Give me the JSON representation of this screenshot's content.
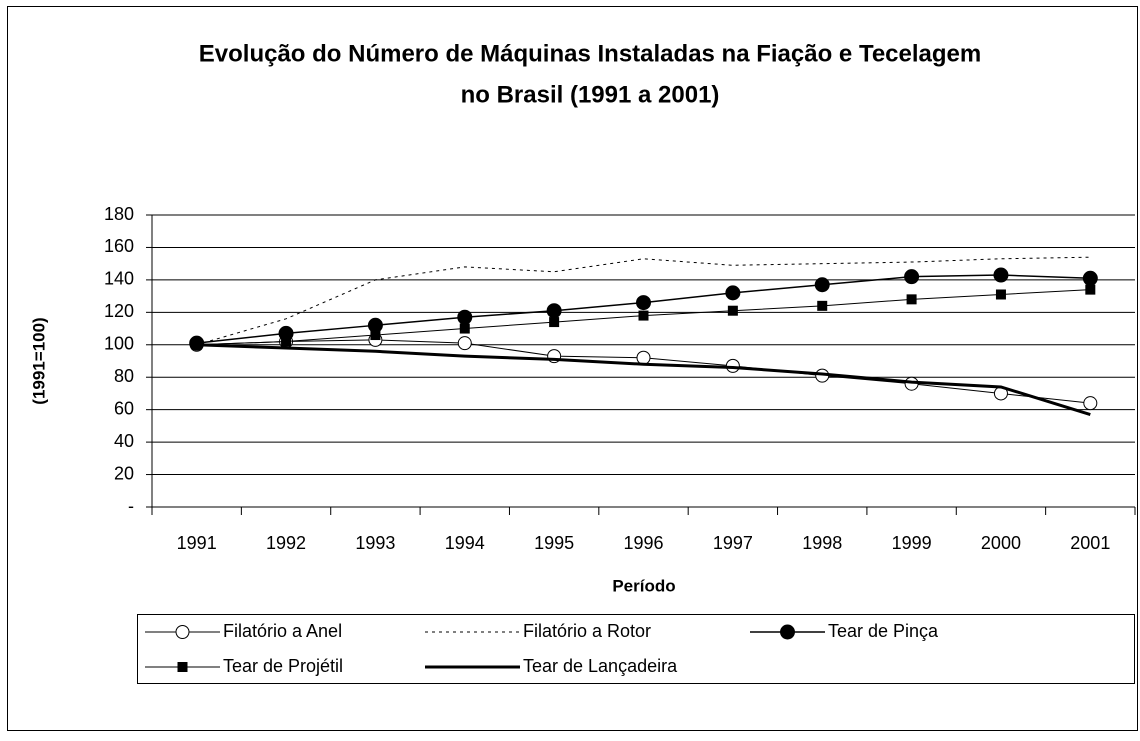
{
  "chart_data": {
    "type": "line",
    "title": [
      "Evolução do Número de Máquinas Instaladas na Fiação e Tecelagem",
      "no Brasil  (1991 a 2001)"
    ],
    "xlabel": "Período",
    "ylabel": "(1991=100)",
    "categories": [
      "1991",
      "1992",
      "1993",
      "1994",
      "1995",
      "1996",
      "1997",
      "1998",
      "1999",
      "2000",
      "2001"
    ],
    "series": [
      {
        "name": "Filatório a Anel",
        "color": "#000000",
        "linestyle": "solid",
        "linewidth": 1,
        "marker": "circle-open",
        "values": [
          100,
          102,
          103,
          101,
          93,
          92,
          87,
          81,
          76,
          70,
          64
        ]
      },
      {
        "name": "Filatório a Rotor",
        "color": "#000000",
        "linestyle": "dotted",
        "linewidth": 1,
        "marker": "none",
        "values": [
          100,
          116,
          140,
          148,
          145,
          153,
          149,
          150,
          151,
          153,
          154
        ]
      },
      {
        "name": "Tear de Pinça",
        "color": "#000000",
        "linestyle": "solid",
        "linewidth": 1.5,
        "marker": "circle-filled",
        "values": [
          101,
          107,
          112,
          117,
          121,
          126,
          132,
          137,
          142,
          143,
          141
        ]
      },
      {
        "name": "Tear de Projétil",
        "color": "#000000",
        "linestyle": "solid",
        "linewidth": 1,
        "marker": "square",
        "values": [
          100,
          102,
          106,
          110,
          114,
          118,
          121,
          124,
          128,
          131,
          134
        ]
      },
      {
        "name": "Tear de Lançadeira",
        "color": "#000000",
        "linestyle": "solid",
        "linewidth": 3,
        "marker": "none",
        "values": [
          100,
          98,
          96,
          93,
          91,
          88,
          86,
          82,
          77,
          74,
          57
        ]
      }
    ],
    "ylim": [
      0,
      180
    ],
    "yticks": [
      {
        "value": 0,
        "label": "-"
      },
      20,
      40,
      60,
      80,
      100,
      120,
      140,
      160,
      180
    ],
    "grid": true,
    "legend": "bottom"
  }
}
